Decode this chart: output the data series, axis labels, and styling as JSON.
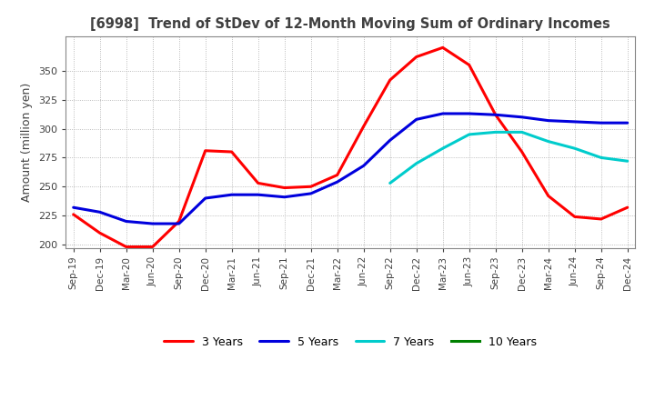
{
  "title": "[6998]  Trend of StDev of 12-Month Moving Sum of Ordinary Incomes",
  "ylabel": "Amount (million yen)",
  "ylim": [
    197,
    380
  ],
  "yticks": [
    200,
    225,
    250,
    275,
    300,
    325,
    350
  ],
  "background_color": "#ffffff",
  "grid_color": "#aaaaaa",
  "title_color": "#404040",
  "x_labels": [
    "Sep-19",
    "Dec-19",
    "Mar-20",
    "Jun-20",
    "Sep-20",
    "Dec-20",
    "Mar-21",
    "Jun-21",
    "Sep-21",
    "Dec-21",
    "Mar-22",
    "Jun-22",
    "Sep-22",
    "Dec-22",
    "Mar-23",
    "Jun-23",
    "Sep-23",
    "Dec-23",
    "Mar-24",
    "Jun-24",
    "Sep-24",
    "Dec-24"
  ],
  "series": {
    "3 Years": {
      "color": "#ff0000",
      "values": [
        226,
        210,
        198,
        198,
        220,
        281,
        280,
        253,
        249,
        250,
        260,
        302,
        342,
        362,
        370,
        355,
        312,
        280,
        242,
        224,
        222,
        232
      ]
    },
    "5 Years": {
      "color": "#0000dd",
      "values": [
        232,
        228,
        220,
        218,
        218,
        240,
        243,
        243,
        241,
        244,
        254,
        268,
        290,
        308,
        313,
        313,
        312,
        310,
        307,
        306,
        305,
        305
      ]
    },
    "7 Years": {
      "color": "#00cccc",
      "values": [
        null,
        null,
        null,
        null,
        null,
        null,
        null,
        null,
        null,
        null,
        null,
        null,
        253,
        270,
        283,
        295,
        297,
        297,
        289,
        283,
        275,
        272
      ]
    },
    "10 Years": {
      "color": "#008000",
      "values": [
        null,
        null,
        null,
        null,
        null,
        null,
        null,
        null,
        null,
        null,
        null,
        null,
        null,
        null,
        null,
        null,
        null,
        null,
        null,
        null,
        null,
        null
      ]
    }
  },
  "legend_order": [
    "3 Years",
    "5 Years",
    "7 Years",
    "10 Years"
  ]
}
